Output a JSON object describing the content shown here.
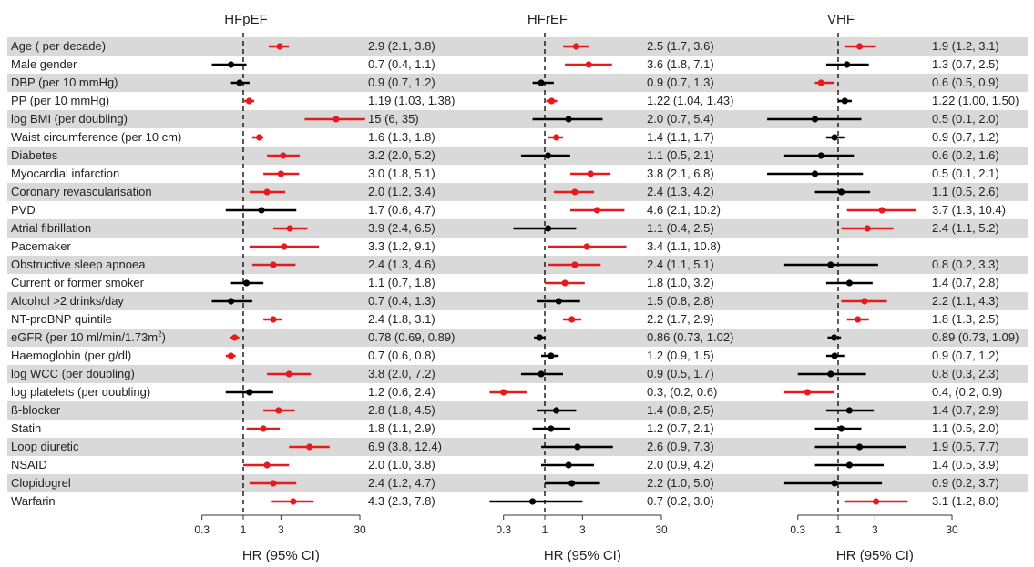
{
  "chart_data": {
    "type": "forest",
    "x_axis": {
      "scale": "log",
      "ticks": [
        0.3,
        1,
        3,
        30
      ],
      "tick_labels": [
        "0.3",
        "1",
        "3",
        "30"
      ],
      "xlim": [
        0.2,
        30
      ],
      "reference_line": 1
    },
    "xlabel": "HR (95% CI)",
    "variables": [
      "Age ( per decade)",
      "Male gender",
      "DBP (per 10 mmHg)",
      "PP (per 10 mmHg)",
      "log BMI (per doubling)",
      "Waist circumference (per 10 cm)",
      "Diabetes",
      "Myocardial infarction",
      "Coronary revascularisation",
      "PVD",
      "Atrial fibrillation",
      "Pacemaker",
      "Obstructive sleep apnoea",
      "Current or former smoker",
      "Alcohol >2 drinks/day",
      "NT-proBNP quintile",
      "eGFR (per 10 ml/min/1.73m",
      "Haemoglobin (per g/dl)",
      "log WCC (per doubling)",
      "log platelets (per doubling)",
      "ß-blocker",
      "Statin",
      "Loop diuretic",
      "NSAID",
      "Clopidogrel",
      "Warfarin"
    ],
    "egfr_superscript": "2",
    "egfr_suffix": ")",
    "panels": [
      {
        "title": "HFpEF",
        "rows": [
          {
            "hr": 2.9,
            "lo": 2.1,
            "hi": 3.8,
            "sig": true,
            "text": "2.9 (2.1, 3.8)"
          },
          {
            "hr": 0.7,
            "lo": 0.4,
            "hi": 1.1,
            "sig": false,
            "text": "0.7 (0.4, 1.1)"
          },
          {
            "hr": 0.9,
            "lo": 0.7,
            "hi": 1.2,
            "sig": false,
            "text": "0.9 (0.7, 1.2)"
          },
          {
            "hr": 1.19,
            "lo": 1.03,
            "hi": 1.38,
            "sig": true,
            "text": "1.19 (1.03, 1.38)"
          },
          {
            "hr": 15,
            "lo": 6,
            "hi": 35,
            "sig": true,
            "text": "15 (6, 35)"
          },
          {
            "hr": 1.6,
            "lo": 1.3,
            "hi": 1.8,
            "sig": true,
            "text": "1.6 (1.3, 1.8)"
          },
          {
            "hr": 3.2,
            "lo": 2.0,
            "hi": 5.2,
            "sig": true,
            "text": "3.2 (2.0, 5.2)"
          },
          {
            "hr": 3.0,
            "lo": 1.8,
            "hi": 5.1,
            "sig": true,
            "text": "3.0 (1.8, 5.1)"
          },
          {
            "hr": 2.0,
            "lo": 1.2,
            "hi": 3.4,
            "sig": true,
            "text": "2.0 (1.2, 3.4)"
          },
          {
            "hr": 1.7,
            "lo": 0.6,
            "hi": 4.7,
            "sig": false,
            "text": "1.7 (0.6, 4.7)"
          },
          {
            "hr": 3.9,
            "lo": 2.4,
            "hi": 6.5,
            "sig": true,
            "text": "3.9 (2.4, 6.5)"
          },
          {
            "hr": 3.3,
            "lo": 1.2,
            "hi": 9.1,
            "sig": true,
            "text": "3.3 (1.2, 9.1)"
          },
          {
            "hr": 2.4,
            "lo": 1.3,
            "hi": 4.6,
            "sig": true,
            "text": "2.4 (1.3, 4.6)"
          },
          {
            "hr": 1.1,
            "lo": 0.7,
            "hi": 1.8,
            "sig": false,
            "text": "1.1 (0.7, 1.8)"
          },
          {
            "hr": 0.7,
            "lo": 0.4,
            "hi": 1.3,
            "sig": false,
            "text": "0.7 (0.4, 1.3)"
          },
          {
            "hr": 2.4,
            "lo": 1.8,
            "hi": 3.1,
            "sig": true,
            "text": "2.4 (1.8, 3.1)"
          },
          {
            "hr": 0.78,
            "lo": 0.69,
            "hi": 0.89,
            "sig": true,
            "text": "0.78 (0.69, 0.89)"
          },
          {
            "hr": 0.7,
            "lo": 0.6,
            "hi": 0.8,
            "sig": true,
            "text": "0.7 (0.6, 0.8)"
          },
          {
            "hr": 3.8,
            "lo": 2.0,
            "hi": 7.2,
            "sig": true,
            "text": "3.8 (2.0, 7.2)"
          },
          {
            "hr": 1.2,
            "lo": 0.6,
            "hi": 2.4,
            "sig": false,
            "text": "1.2 (0.6, 2.4)"
          },
          {
            "hr": 2.8,
            "lo": 1.8,
            "hi": 4.5,
            "sig": true,
            "text": "2.8 (1.8, 4.5)"
          },
          {
            "hr": 1.8,
            "lo": 1.1,
            "hi": 2.9,
            "sig": true,
            "text": "1.8 (1.1, 2.9)"
          },
          {
            "hr": 6.9,
            "lo": 3.8,
            "hi": 12.4,
            "sig": true,
            "text": "6.9 (3.8, 12.4)"
          },
          {
            "hr": 2.0,
            "lo": 1.0,
            "hi": 3.8,
            "sig": true,
            "text": "2.0 (1.0, 3.8)"
          },
          {
            "hr": 2.4,
            "lo": 1.2,
            "hi": 4.7,
            "sig": true,
            "text": "2.4 (1.2, 4.7)"
          },
          {
            "hr": 4.3,
            "lo": 2.3,
            "hi": 7.8,
            "sig": true,
            "text": "4.3 (2.3, 7.8)"
          }
        ]
      },
      {
        "title": "HFrEF",
        "rows": [
          {
            "hr": 2.5,
            "lo": 1.7,
            "hi": 3.6,
            "sig": true,
            "text": "2.5 (1.7, 3.6)"
          },
          {
            "hr": 3.6,
            "lo": 1.8,
            "hi": 7.1,
            "sig": true,
            "text": "3.6 (1.8, 7.1)"
          },
          {
            "hr": 0.9,
            "lo": 0.7,
            "hi": 1.3,
            "sig": false,
            "text": "0.9 (0.7, 1.3)"
          },
          {
            "hr": 1.22,
            "lo": 1.04,
            "hi": 1.43,
            "sig": true,
            "text": "1.22 (1.04, 1.43)"
          },
          {
            "hr": 2.0,
            "lo": 0.7,
            "hi": 5.4,
            "sig": false,
            "text": "2.0 (0.7, 5.4)"
          },
          {
            "hr": 1.4,
            "lo": 1.1,
            "hi": 1.7,
            "sig": true,
            "text": "1.4 (1.1, 1.7)"
          },
          {
            "hr": 1.1,
            "lo": 0.5,
            "hi": 2.1,
            "sig": false,
            "text": "1.1 (0.5, 2.1)"
          },
          {
            "hr": 3.8,
            "lo": 2.1,
            "hi": 6.8,
            "sig": true,
            "text": "3.8 (2.1, 6.8)"
          },
          {
            "hr": 2.4,
            "lo": 1.3,
            "hi": 4.2,
            "sig": true,
            "text": "2.4 (1.3, 4.2)"
          },
          {
            "hr": 4.6,
            "lo": 2.1,
            "hi": 10.2,
            "sig": true,
            "text": "4.6 (2.1, 10.2)"
          },
          {
            "hr": 1.1,
            "lo": 0.4,
            "hi": 2.5,
            "sig": false,
            "text": "1.1 (0.4, 2.5)"
          },
          {
            "hr": 3.4,
            "lo": 1.1,
            "hi": 10.8,
            "sig": true,
            "text": "3.4 (1.1, 10.8)"
          },
          {
            "hr": 2.4,
            "lo": 1.1,
            "hi": 5.1,
            "sig": true,
            "text": "2.4 (1.1, 5.1)"
          },
          {
            "hr": 1.8,
            "lo": 1.0,
            "hi": 3.2,
            "sig": true,
            "text": "1.8 (1.0, 3.2)"
          },
          {
            "hr": 1.5,
            "lo": 0.8,
            "hi": 2.8,
            "sig": false,
            "text": "1.5 (0.8, 2.8)"
          },
          {
            "hr": 2.2,
            "lo": 1.7,
            "hi": 2.9,
            "sig": true,
            "text": "2.2 (1.7, 2.9)"
          },
          {
            "hr": 0.86,
            "lo": 0.73,
            "hi": 1.02,
            "sig": false,
            "text": "0.86 (0.73, 1.02)"
          },
          {
            "hr": 1.2,
            "lo": 0.9,
            "hi": 1.5,
            "sig": false,
            "text": "1.2 (0.9, 1.5)"
          },
          {
            "hr": 0.9,
            "lo": 0.5,
            "hi": 1.7,
            "sig": false,
            "text": "0.9 (0.5, 1.7)"
          },
          {
            "hr": 0.3,
            "lo": 0.2,
            "hi": 0.6,
            "sig": true,
            "text": "0.3, (0.2, 0.6)"
          },
          {
            "hr": 1.4,
            "lo": 0.8,
            "hi": 2.5,
            "sig": false,
            "text": "1.4 (0.8, 2.5)"
          },
          {
            "hr": 1.2,
            "lo": 0.7,
            "hi": 2.1,
            "sig": false,
            "text": "1.2 (0.7, 2.1)"
          },
          {
            "hr": 2.6,
            "lo": 0.9,
            "hi": 7.3,
            "sig": false,
            "text": "2.6 (0.9, 7.3)"
          },
          {
            "hr": 2.0,
            "lo": 0.9,
            "hi": 4.2,
            "sig": false,
            "text": "2.0 (0.9, 4.2)"
          },
          {
            "hr": 2.2,
            "lo": 1.0,
            "hi": 5.0,
            "sig": false,
            "text": "2.2 (1.0, 5.0)"
          },
          {
            "hr": 0.7,
            "lo": 0.2,
            "hi": 3.0,
            "sig": false,
            "text": "0.7 (0.2, 3.0)"
          }
        ]
      },
      {
        "title": "VHF",
        "rows": [
          {
            "hr": 1.9,
            "lo": 1.2,
            "hi": 3.1,
            "sig": true,
            "text": "1.9 (1.2, 3.1)"
          },
          {
            "hr": 1.3,
            "lo": 0.7,
            "hi": 2.5,
            "sig": false,
            "text": "1.3 (0.7, 2.5)"
          },
          {
            "hr": 0.6,
            "lo": 0.5,
            "hi": 0.9,
            "sig": true,
            "text": "0.6 (0.5, 0.9)"
          },
          {
            "hr": 1.22,
            "lo": 1.0,
            "hi": 1.5,
            "sig": false,
            "text": "1.22 (1.00, 1.50)"
          },
          {
            "hr": 0.5,
            "lo": 0.1,
            "hi": 2.0,
            "sig": false,
            "text": "0.5 (0.1, 2.0)"
          },
          {
            "hr": 0.9,
            "lo": 0.7,
            "hi": 1.2,
            "sig": false,
            "text": "0.9 (0.7, 1.2)"
          },
          {
            "hr": 0.6,
            "lo": 0.2,
            "hi": 1.6,
            "sig": false,
            "text": "0.6 (0.2, 1.6)"
          },
          {
            "hr": 0.5,
            "lo": 0.1,
            "hi": 2.1,
            "sig": false,
            "text": "0.5 (0.1, 2.1)"
          },
          {
            "hr": 1.1,
            "lo": 0.5,
            "hi": 2.6,
            "sig": false,
            "text": "1.1 (0.5, 2.6)"
          },
          {
            "hr": 3.7,
            "lo": 1.3,
            "hi": 10.4,
            "sig": true,
            "text": "3.7 (1.3, 10.4)"
          },
          {
            "hr": 2.4,
            "lo": 1.1,
            "hi": 5.2,
            "sig": true,
            "text": "2.4 (1.1, 5.2)"
          },
          null,
          {
            "hr": 0.8,
            "lo": 0.2,
            "hi": 3.3,
            "sig": false,
            "text": "0.8 (0.2, 3.3)"
          },
          {
            "hr": 1.4,
            "lo": 0.7,
            "hi": 2.8,
            "sig": false,
            "text": "1.4 (0.7, 2.8)"
          },
          {
            "hr": 2.2,
            "lo": 1.1,
            "hi": 4.3,
            "sig": true,
            "text": "2.2 (1.1, 4.3)"
          },
          {
            "hr": 1.8,
            "lo": 1.3,
            "hi": 2.5,
            "sig": true,
            "text": "1.8 (1.3, 2.5)"
          },
          {
            "hr": 0.89,
            "lo": 0.73,
            "hi": 1.09,
            "sig": false,
            "text": "0.89 (0.73, 1.09)"
          },
          {
            "hr": 0.9,
            "lo": 0.7,
            "hi": 1.2,
            "sig": false,
            "text": "0.9 (0.7, 1.2)"
          },
          {
            "hr": 0.8,
            "lo": 0.3,
            "hi": 2.3,
            "sig": false,
            "text": "0.8 (0.3, 2.3)"
          },
          {
            "hr": 0.4,
            "lo": 0.2,
            "hi": 0.9,
            "sig": true,
            "text": "0.4, (0.2, 0.9)"
          },
          {
            "hr": 1.4,
            "lo": 0.7,
            "hi": 2.9,
            "sig": false,
            "text": "1.4 (0.7, 2.9)"
          },
          {
            "hr": 1.1,
            "lo": 0.5,
            "hi": 2.0,
            "sig": false,
            "text": "1.1 (0.5, 2.0)"
          },
          {
            "hr": 1.9,
            "lo": 0.5,
            "hi": 7.7,
            "sig": false,
            "text": "1.9 (0.5, 7.7)"
          },
          {
            "hr": 1.4,
            "lo": 0.5,
            "hi": 3.9,
            "sig": false,
            "text": "1.4 (0.5, 3.9)"
          },
          {
            "hr": 0.9,
            "lo": 0.2,
            "hi": 3.7,
            "sig": false,
            "text": "0.9 (0.2, 3.7)"
          },
          {
            "hr": 3.1,
            "lo": 1.2,
            "hi": 8.0,
            "sig": true,
            "text": "3.1 (1.2, 8.0)"
          }
        ]
      }
    ],
    "colors": {
      "significant": "#e8191c",
      "nonsignificant": "#000000",
      "stripe": "#d9d9d9"
    },
    "grid": false
  }
}
